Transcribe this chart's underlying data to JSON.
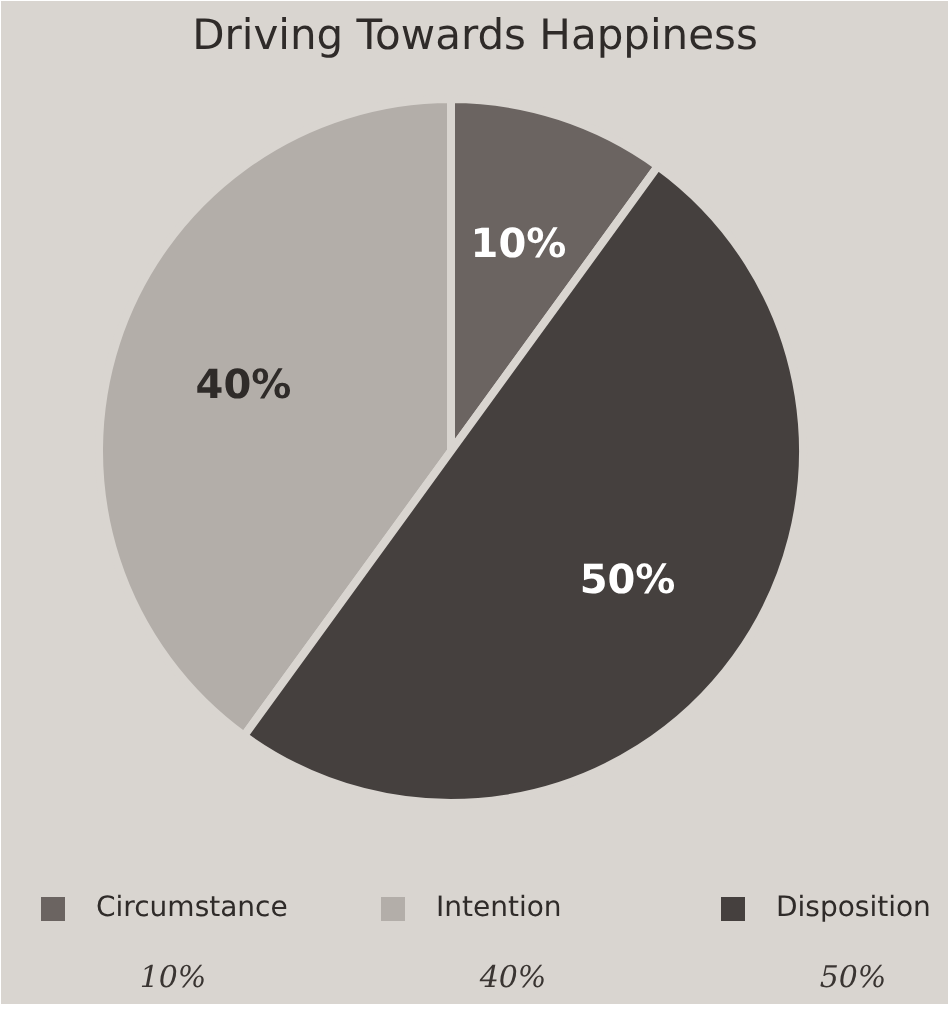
{
  "chart_data": {
    "type": "pie",
    "title": "Driving Towards Happiness",
    "categories": [
      "Circumstance",
      "Intention",
      "Disposition"
    ],
    "values": [
      10,
      40,
      50
    ],
    "colors": [
      "#6b6461",
      "#b3aea9",
      "#45403e"
    ],
    "value_labels": [
      "10%",
      "40%",
      "50%"
    ],
    "legend": "bottom",
    "annotations": [
      "10%",
      "40%",
      "50%"
    ]
  }
}
